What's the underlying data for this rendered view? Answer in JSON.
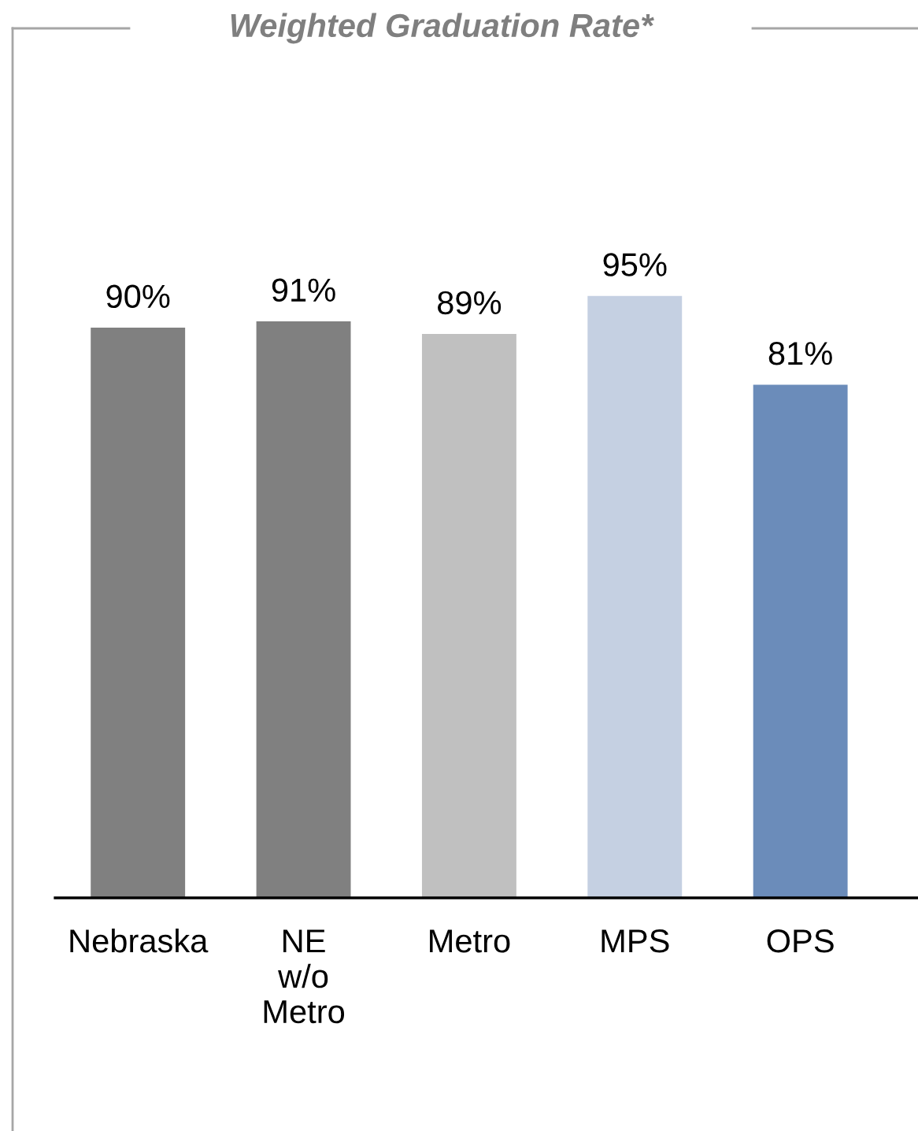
{
  "chart_data": {
    "type": "bar",
    "title": "Weighted Graduation Rate*",
    "categories": [
      "Nebraska",
      "NE w/o Metro",
      "Metro",
      "MPS",
      "OPS"
    ],
    "values": [
      90,
      91,
      89,
      95,
      81
    ],
    "colors": [
      "#808080",
      "#808080",
      "#c0c0c0",
      "#c5d0e2",
      "#6b8cba"
    ],
    "tick_labels": false,
    "value_labels": [
      "90%",
      "91%",
      "89%",
      "95%",
      "81%"
    ],
    "grid": false,
    "legend": false
  }
}
